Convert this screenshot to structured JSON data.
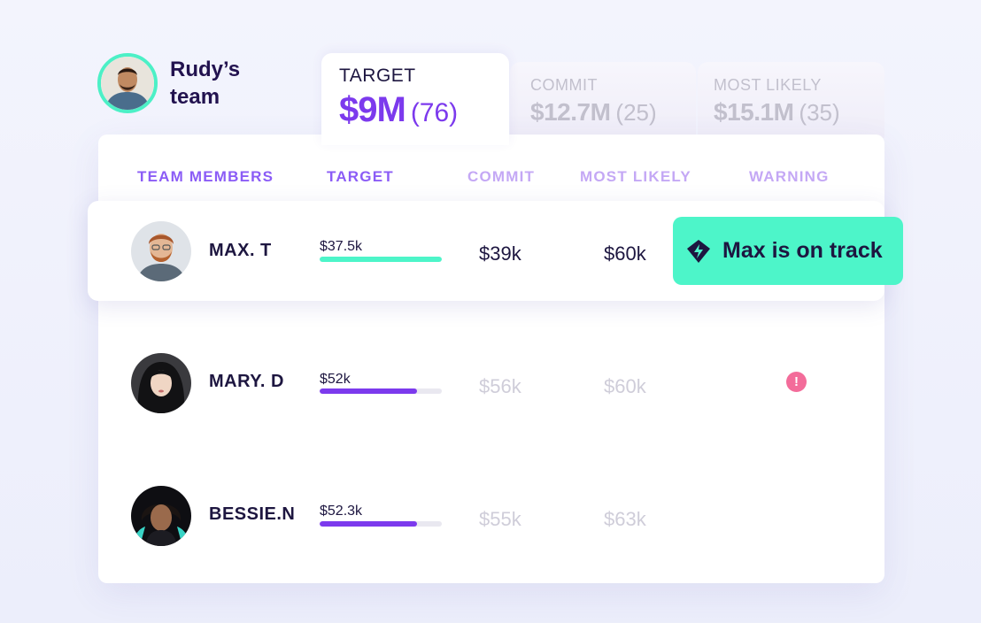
{
  "team": {
    "name": "Rudy’s team",
    "avatar": "rudy-avatar"
  },
  "tabs": [
    {
      "label": "TARGET",
      "value": "$9M",
      "count": "(76)",
      "active": true
    },
    {
      "label": "COMMIT",
      "value": "$12.7M",
      "count": "(25)",
      "active": false
    },
    {
      "label": "MOST LIKELY",
      "value": "$15.1M",
      "count": "(35)",
      "active": false
    }
  ],
  "table": {
    "columns": [
      "TEAM MEMBERS",
      "TARGET",
      "COMMIT",
      "MOST LIKELY",
      "WARNING"
    ],
    "rows": [
      {
        "name": "MAX. T",
        "target": "$37.5k",
        "target_progress": 1.0,
        "bar_color": "#4df5c9",
        "commit": "$39k",
        "most_likely": "$60k",
        "highlighted": true
      },
      {
        "name": "MARY. D",
        "target": "$52k",
        "target_progress": 0.8,
        "bar_color": "#7c3aed",
        "commit": "$56k",
        "most_likely": "$60k",
        "warning": true
      },
      {
        "name": "BESSIE.N",
        "target": "$52.3k",
        "target_progress": 0.8,
        "bar_color": "#7c3aed",
        "commit": "$55k",
        "most_likely": "$63k"
      }
    ]
  },
  "toast": {
    "text": "Max is on track",
    "icon": "bolt-diamond-icon"
  },
  "colors": {
    "accent_purple": "#7c3aed",
    "accent_mint": "#4df5c9",
    "warning_pink": "#f36c9a"
  }
}
